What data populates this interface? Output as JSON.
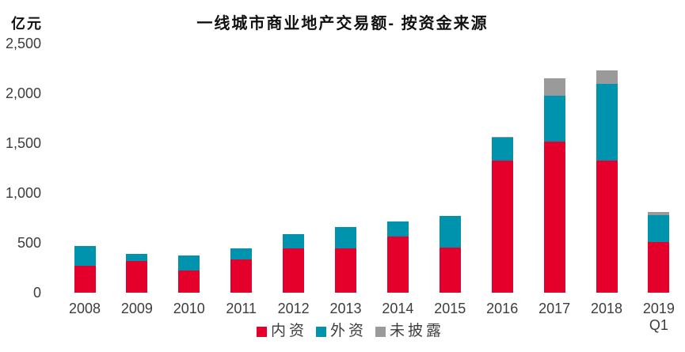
{
  "chart_data": {
    "type": "bar",
    "stacked": true,
    "title": "一线城市商业地产交易额- 按资金来源",
    "unit_label": "亿元",
    "categories": [
      "2008",
      "2009",
      "2010",
      "2011",
      "2012",
      "2013",
      "2014",
      "2015",
      "2016",
      "2017",
      "2018",
      "2019 Q1"
    ],
    "series": [
      {
        "name": "内资",
        "color": "#E4002B",
        "values": [
          270,
          320,
          225,
          335,
          440,
          440,
          565,
          450,
          1325,
          1515,
          1325,
          505
        ]
      },
      {
        "name": "外资",
        "color": "#0093AE",
        "values": [
          195,
          70,
          150,
          105,
          150,
          215,
          150,
          315,
          230,
          455,
          765,
          275
        ]
      },
      {
        "name": "未披露",
        "color": "#9A9A9A",
        "values": [
          0,
          0,
          0,
          0,
          0,
          0,
          0,
          0,
          10,
          180,
          140,
          30
        ]
      }
    ],
    "ylim": [
      0,
      2500
    ],
    "yticks": [
      0,
      500,
      1000,
      1500,
      2000,
      2500
    ],
    "ytick_labels": [
      "0",
      "500",
      "1,000",
      "1,500",
      "2,000",
      "2,500"
    ],
    "legend_position": "bottom",
    "grid": false,
    "axis_line": false,
    "text_color": "#3D3D3D"
  }
}
